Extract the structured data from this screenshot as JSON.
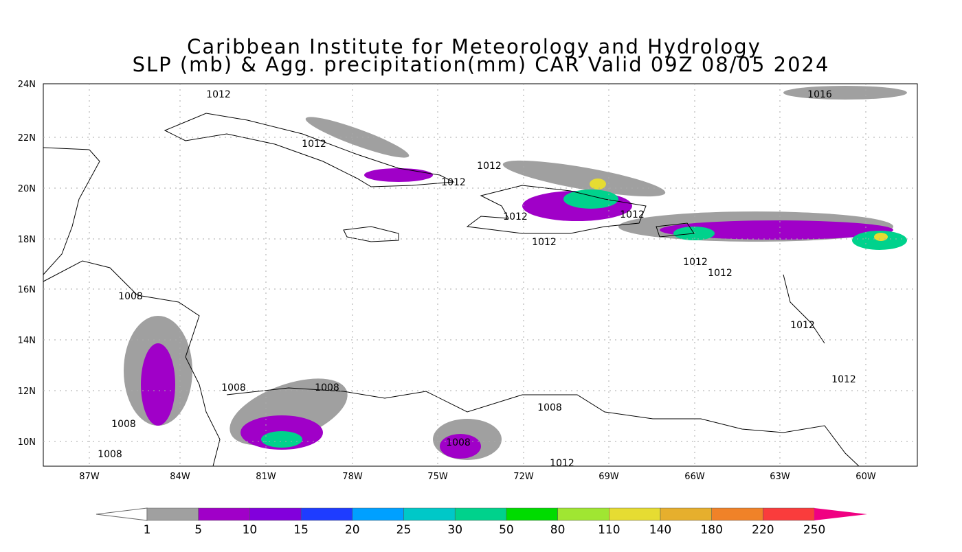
{
  "header": {
    "title": "Caribbean Institute for Meteorology and Hydrology",
    "subtitle": "SLP (mb) & Agg. precipitation(mm) CAR Valid 09Z 08/05 2024"
  },
  "map": {
    "lat_labels": [
      "24N",
      "22N",
      "20N",
      "18N",
      "16N",
      "14N",
      "12N",
      "10N"
    ],
    "lon_labels": [
      "87W",
      "84W",
      "81W",
      "78W",
      "75W",
      "72W",
      "69W",
      "66W",
      "63W",
      "60W"
    ],
    "isobars": [
      "1012",
      "1012",
      "1012",
      "1012",
      "1012",
      "1012",
      "1012",
      "1012",
      "1012",
      "1016",
      "1012",
      "1012",
      "1008",
      "1008",
      "1008",
      "1008",
      "1008",
      "1008",
      "1008",
      "1012"
    ]
  },
  "colorbar": {
    "labels": [
      "1",
      "5",
      "10",
      "15",
      "20",
      "25",
      "30",
      "50",
      "80",
      "110",
      "140",
      "180",
      "220",
      "250"
    ],
    "colors": [
      "#a0a0a0",
      "#a000c8",
      "#8200dc",
      "#1e3cff",
      "#00a0ff",
      "#00c8c8",
      "#00d28c",
      "#00dc00",
      "#a0e632",
      "#e6dc32",
      "#e6af2d",
      "#f08228",
      "#fa3c3c"
    ],
    "under_color": "#ffffff",
    "over_color": "#f00082"
  }
}
